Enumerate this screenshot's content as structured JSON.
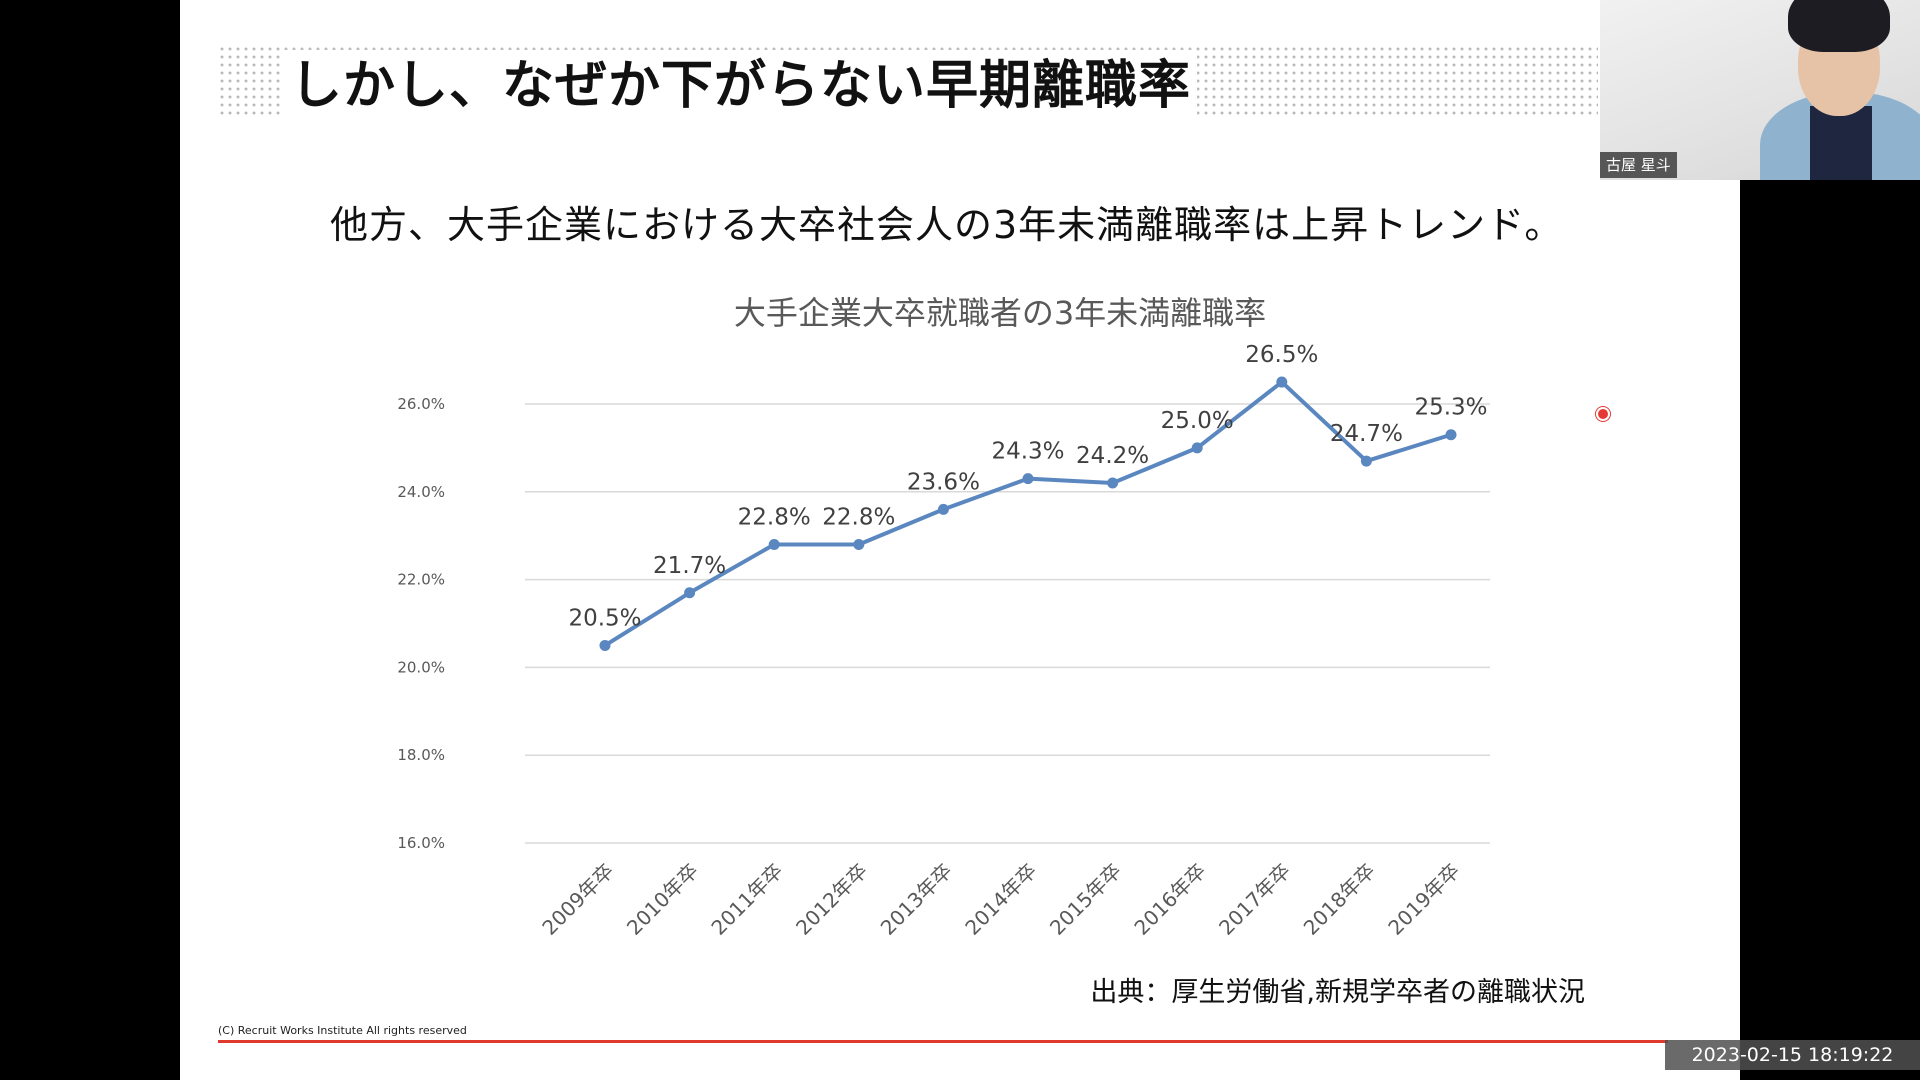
{
  "slide": {
    "title": "しかし、なぜか下がらない早期離職率",
    "subtitle": "他方、大手企業における大卒社会人の3年未満離職率は上昇トレンド。",
    "source_note": "出典：厚生労働省,新規学卒者の離職状況",
    "copyright": "(C) Recruit Works Institute All rights reserved"
  },
  "chart_data": {
    "type": "line",
    "title": "大手企業大卒就職者の3年未満離職率",
    "categories": [
      "2009年卒",
      "2010年卒",
      "2011年卒",
      "2012年卒",
      "2013年卒",
      "2014年卒",
      "2015年卒",
      "2016年卒",
      "2017年卒",
      "2018年卒",
      "2019年卒"
    ],
    "values": [
      20.5,
      21.7,
      22.8,
      22.8,
      23.6,
      24.3,
      24.2,
      25.0,
      26.5,
      24.7,
      25.3
    ],
    "data_labels": [
      "20.5%",
      "21.7%",
      "22.8%",
      "22.8%",
      "23.6%",
      "24.3%",
      "24.2%",
      "25.0%",
      "26.5%",
      "24.7%",
      "25.3%"
    ],
    "y_ticks": [
      16,
      18,
      20,
      22,
      24,
      26
    ],
    "y_tick_labels": [
      "16.0%",
      "18.0%",
      "20.0%",
      "22.0%",
      "24.0%",
      "26.0%"
    ],
    "ylim": [
      16,
      26.5
    ],
    "grid": true,
    "line_color": "#5b87c0",
    "xlabel": "",
    "ylabel": ""
  },
  "webcam": {
    "participant_name": "古屋 星斗"
  },
  "recording": {
    "timestamp": "2023-02-15  18:19:22"
  },
  "colors": {
    "accent_line": "#e03a2f",
    "series_line": "#5b87c0"
  }
}
